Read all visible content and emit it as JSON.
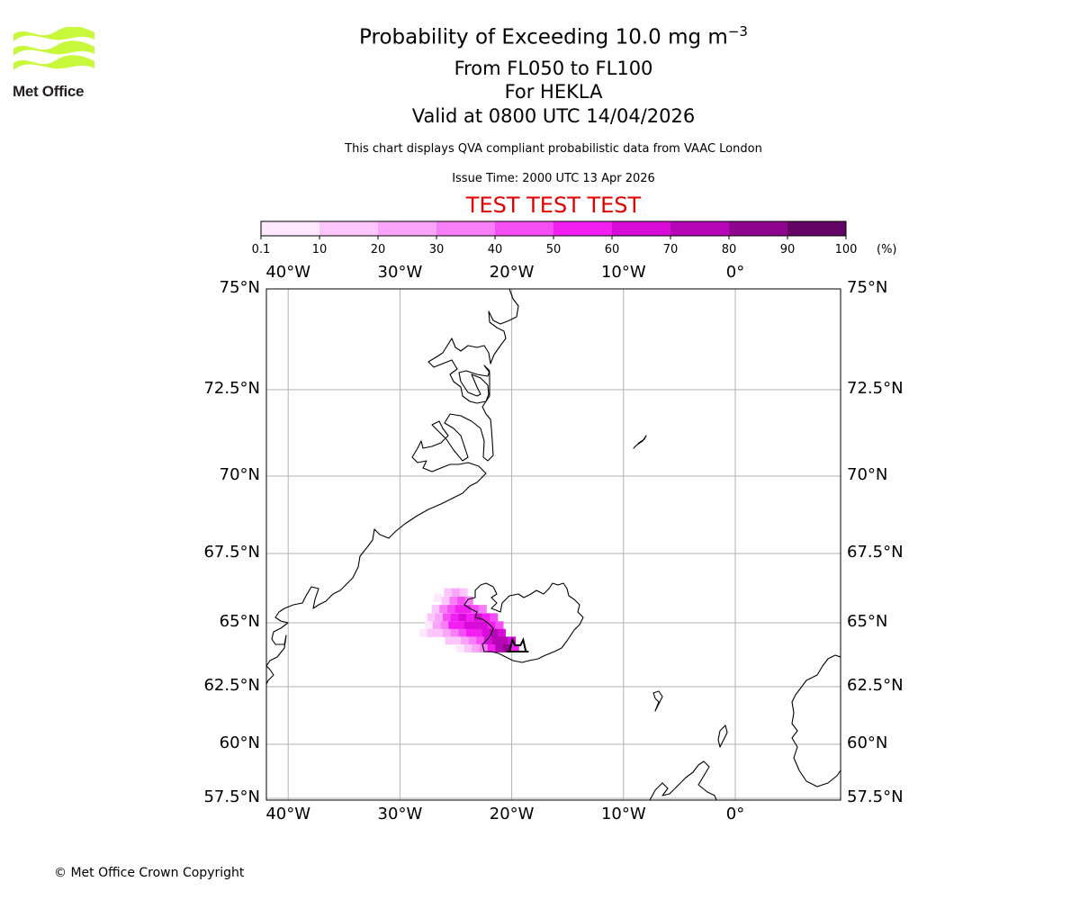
{
  "logo": {
    "name": "Met Office",
    "color": "#c7f83b"
  },
  "title": {
    "line1_prefix": "Probability of Exceeding 10.0 mg m",
    "line1_sup": "−3",
    "line2": "From FL050 to FL100",
    "line3": "For HEKLA",
    "line4": "Valid at 0800 UTC 14/04/2026",
    "subtitle": "This chart displays QVA compliant probabilistic data from VAAC London",
    "issue_time": "Issue Time: 2000 UTC 13 Apr 2026",
    "test_banner": "TEST TEST TEST"
  },
  "colorbar": {
    "unit": "(%)",
    "ticks": [
      "0.1",
      "10",
      "20",
      "30",
      "40",
      "50",
      "60",
      "70",
      "80",
      "90",
      "100"
    ],
    "colors": [
      "#fde8fd",
      "#fbc6fb",
      "#f9a4f9",
      "#f77ef7",
      "#f54ef5",
      "#f21ef2",
      "#d80cd8",
      "#b606b6",
      "#8e048e",
      "#640464"
    ]
  },
  "axes": {
    "lon_labels": [
      "40°W",
      "30°W",
      "20°W",
      "10°W",
      "0°"
    ],
    "lon_values": [
      -40,
      -30,
      -20,
      -10,
      0
    ],
    "lat_labels": [
      "75°N",
      "72.5°N",
      "70°N",
      "67.5°N",
      "65°N",
      "62.5°N",
      "60°N",
      "57.5°N"
    ],
    "lat_values": [
      75,
      72.5,
      70,
      67.5,
      65,
      62.5,
      60,
      57.5
    ],
    "grid": true,
    "gridline_color": "#b0b0b0",
    "coastline_color": "#000000"
  },
  "volcano": {
    "name": "HEKLA",
    "lat": 63.98,
    "lon": -19.7,
    "marker": "volcano-icon"
  },
  "plume_cells": [
    {
      "lon": -25.7,
      "lat": 66.1,
      "pct": 12
    },
    {
      "lon": -25.0,
      "lat": 66.1,
      "pct": 22
    },
    {
      "lon": -24.3,
      "lat": 66.1,
      "pct": 15
    },
    {
      "lon": -26.6,
      "lat": 65.9,
      "pct": 8
    },
    {
      "lon": -25.9,
      "lat": 65.8,
      "pct": 18
    },
    {
      "lon": -25.2,
      "lat": 65.8,
      "pct": 35
    },
    {
      "lon": -24.5,
      "lat": 65.8,
      "pct": 45
    },
    {
      "lon": -23.8,
      "lat": 65.8,
      "pct": 30
    },
    {
      "lon": -26.8,
      "lat": 65.5,
      "pct": 15
    },
    {
      "lon": -26.1,
      "lat": 65.5,
      "pct": 32
    },
    {
      "lon": -25.4,
      "lat": 65.5,
      "pct": 48
    },
    {
      "lon": -24.7,
      "lat": 65.5,
      "pct": 55
    },
    {
      "lon": -24.0,
      "lat": 65.5,
      "pct": 50
    },
    {
      "lon": -23.3,
      "lat": 65.5,
      "pct": 42
    },
    {
      "lon": -22.6,
      "lat": 65.5,
      "pct": 38
    },
    {
      "lon": -27.2,
      "lat": 65.2,
      "pct": 12
    },
    {
      "lon": -26.5,
      "lat": 65.2,
      "pct": 25
    },
    {
      "lon": -25.8,
      "lat": 65.2,
      "pct": 44
    },
    {
      "lon": -25.1,
      "lat": 65.2,
      "pct": 58
    },
    {
      "lon": -24.4,
      "lat": 65.2,
      "pct": 62
    },
    {
      "lon": -23.7,
      "lat": 65.2,
      "pct": 55
    },
    {
      "lon": -23.0,
      "lat": 65.2,
      "pct": 60
    },
    {
      "lon": -22.3,
      "lat": 65.2,
      "pct": 52
    },
    {
      "lon": -21.6,
      "lat": 65.2,
      "pct": 40
    },
    {
      "lon": -27.4,
      "lat": 64.9,
      "pct": 8
    },
    {
      "lon": -26.7,
      "lat": 64.9,
      "pct": 20
    },
    {
      "lon": -26.0,
      "lat": 64.9,
      "pct": 35
    },
    {
      "lon": -25.3,
      "lat": 64.9,
      "pct": 50
    },
    {
      "lon": -24.6,
      "lat": 64.9,
      "pct": 58
    },
    {
      "lon": -23.9,
      "lat": 64.9,
      "pct": 64
    },
    {
      "lon": -23.2,
      "lat": 64.9,
      "pct": 66
    },
    {
      "lon": -22.5,
      "lat": 64.9,
      "pct": 62
    },
    {
      "lon": -21.8,
      "lat": 64.9,
      "pct": 58
    },
    {
      "lon": -21.1,
      "lat": 64.9,
      "pct": 45
    },
    {
      "lon": -27.9,
      "lat": 64.6,
      "pct": 6
    },
    {
      "lon": -27.2,
      "lat": 64.6,
      "pct": 12
    },
    {
      "lon": -26.5,
      "lat": 64.6,
      "pct": 18
    },
    {
      "lon": -25.8,
      "lat": 64.6,
      "pct": 28
    },
    {
      "lon": -25.1,
      "lat": 64.6,
      "pct": 38
    },
    {
      "lon": -24.4,
      "lat": 64.6,
      "pct": 46
    },
    {
      "lon": -23.7,
      "lat": 64.6,
      "pct": 52
    },
    {
      "lon": -23.0,
      "lat": 64.6,
      "pct": 58
    },
    {
      "lon": -22.3,
      "lat": 64.6,
      "pct": 66
    },
    {
      "lon": -21.6,
      "lat": 64.6,
      "pct": 72
    },
    {
      "lon": -20.9,
      "lat": 64.6,
      "pct": 62
    },
    {
      "lon": -25.6,
      "lat": 64.3,
      "pct": 10
    },
    {
      "lon": -24.9,
      "lat": 64.3,
      "pct": 18
    },
    {
      "lon": -24.2,
      "lat": 64.3,
      "pct": 25
    },
    {
      "lon": -23.5,
      "lat": 64.3,
      "pct": 35
    },
    {
      "lon": -22.8,
      "lat": 64.3,
      "pct": 48
    },
    {
      "lon": -22.1,
      "lat": 64.3,
      "pct": 62
    },
    {
      "lon": -21.4,
      "lat": 64.3,
      "pct": 74
    },
    {
      "lon": -20.7,
      "lat": 64.3,
      "pct": 78
    },
    {
      "lon": -20.0,
      "lat": 64.3,
      "pct": 60
    },
    {
      "lon": -24.6,
      "lat": 64.0,
      "pct": 8
    },
    {
      "lon": -23.9,
      "lat": 64.0,
      "pct": 14
    },
    {
      "lon": -23.2,
      "lat": 64.0,
      "pct": 22
    },
    {
      "lon": -22.5,
      "lat": 64.0,
      "pct": 35
    },
    {
      "lon": -21.8,
      "lat": 64.0,
      "pct": 55
    },
    {
      "lon": -21.1,
      "lat": 64.0,
      "pct": 76
    },
    {
      "lon": -20.4,
      "lat": 64.0,
      "pct": 85
    },
    {
      "lon": -19.7,
      "lat": 64.0,
      "pct": 55
    }
  ],
  "footer": "© Met Office Crown Copyright"
}
